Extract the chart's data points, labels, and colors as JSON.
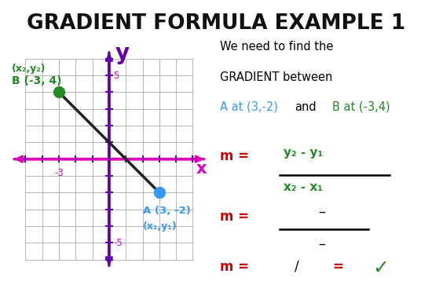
{
  "title": "GRADIENT FORMULA EXAMPLE 1",
  "bg_color": "#ffffff",
  "title_color": "#111111",
  "point_A": [
    3,
    -2
  ],
  "point_B": [
    -3,
    4
  ],
  "point_A_color": "#3399ff",
  "point_B_color": "#228B22",
  "line_color": "#222222",
  "grid_color": "#aaaaaa",
  "x_axis_color": "#dd00bb",
  "y_axis_color": "#6600aa",
  "label_A": "A (3, -2)",
  "label_B": "B (-3, 4)",
  "coord_label_A": "(x₁,y₁)",
  "coord_label_B": "(x₂,y₂)",
  "text_line1": "We need to find the",
  "text_line2": "GRADIENT between",
  "text_and": " and ",
  "text_A_label": "A at (3,-2)",
  "text_B_label": "B at (-3,4)",
  "red_color": "#cc0000",
  "green_color": "#228B22",
  "blue_color": "#3399ff",
  "purple_color": "#6600aa",
  "tick_label_color": "#dd00bb",
  "xmin": -6,
  "xmax": 6,
  "ymin": -7,
  "ymax": 7
}
